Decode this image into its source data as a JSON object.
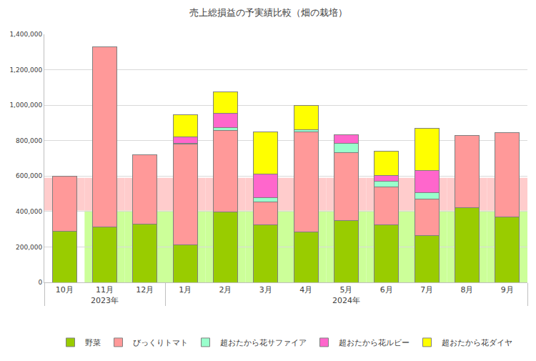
{
  "chart_data": {
    "type": "bar",
    "title": "売上総損益の予実績比較（畑の栽培）",
    "stacked": true,
    "grid": true,
    "legend": "bottom",
    "categories": [
      "10月",
      "11月",
      "12月",
      "1月",
      "2月",
      "3月",
      "4月",
      "5月",
      "6月",
      "7月",
      "8月",
      "9月"
    ],
    "category_groups": [
      "2023年",
      "2023年",
      "2023年",
      "2024年",
      "2024年",
      "2024年",
      "2024年",
      "2024年",
      "2024年",
      "2024年",
      "2024年",
      "2024年"
    ],
    "ylim": [
      0,
      1400000
    ],
    "yticks": [
      0,
      {
        "value": 200000,
        "label": "200,000"
      },
      {
        "value": 400000,
        "label": "400,000"
      },
      {
        "value": 600000,
        "label": "600,000"
      },
      {
        "value": 800000,
        "label": "800,000"
      },
      {
        "value": 1000000,
        "label": "1,000,000"
      },
      {
        "value": 1200000,
        "label": "1,200,000"
      },
      {
        "value": 1400000,
        "label": "1,400,000"
      }
    ],
    "series": [
      {
        "name": "野菜",
        "color": "#99cc00",
        "values": [
          290000,
          312000,
          328000,
          210000,
          397000,
          325000,
          285000,
          348000,
          325000,
          265000,
          420000,
          370000
        ]
      },
      {
        "name": "びっくりトマト",
        "color": "#ff9999",
        "values": [
          310000,
          1018000,
          392000,
          570000,
          460000,
          130000,
          565000,
          385000,
          215000,
          205000,
          410000,
          475000
        ]
      },
      {
        "name": "超おたから花サファイア",
        "color": "#99ffcc",
        "values": [
          null,
          null,
          null,
          5000,
          18000,
          25000,
          10000,
          52000,
          30000,
          35000,
          null,
          null
        ]
      },
      {
        "name": "超おたから花ルビー",
        "color": "#ff66cc",
        "values": [
          null,
          null,
          null,
          35000,
          78000,
          130000,
          null,
          50000,
          35000,
          125000,
          null,
          null
        ]
      },
      {
        "name": "超おたから花ダイヤ",
        "color": "#ffff00",
        "values": [
          null,
          null,
          null,
          125000,
          122000,
          240000,
          140000,
          null,
          135000,
          240000,
          null,
          null
        ]
      }
    ],
    "target_bands": [
      {
        "color": "#ccff99",
        "low": [
          null,
          0,
          0,
          0,
          0,
          0,
          0,
          0,
          0,
          0,
          0,
          0
        ],
        "high": [
          null,
          405000,
          405000,
          405000,
          405000,
          405000,
          405000,
          405000,
          405000,
          405000,
          405000,
          405000
        ]
      },
      {
        "color": "#ffcccc",
        "low": [
          405000,
          405000,
          405000,
          405000,
          405000,
          405000,
          405000,
          405000,
          405000,
          405000,
          405000,
          405000
        ],
        "high": [
          590000,
          590000,
          590000,
          590000,
          590000,
          590000,
          590000,
          590000,
          590000,
          590000,
          590000,
          590000
        ]
      }
    ]
  }
}
